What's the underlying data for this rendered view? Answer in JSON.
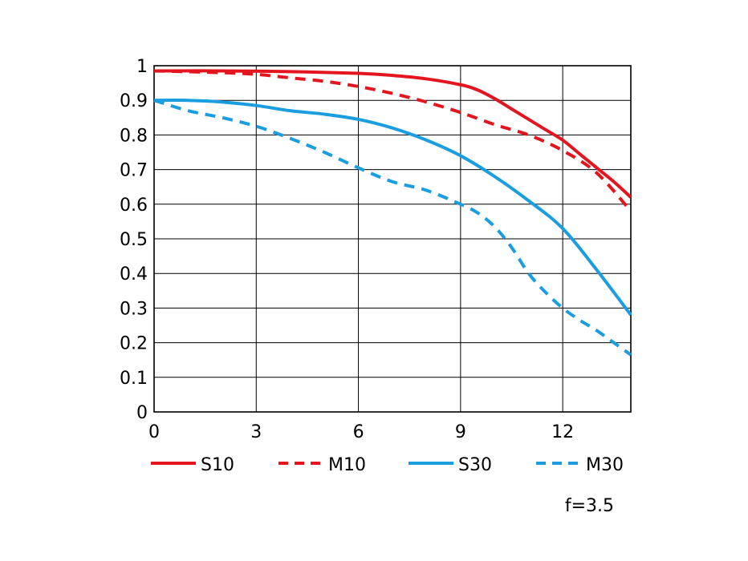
{
  "chart_data": {
    "type": "line",
    "xlim": [
      0,
      14
    ],
    "ylim": [
      0,
      1
    ],
    "x_ticks": [
      "0",
      "3",
      "6",
      "9",
      "12"
    ],
    "x_tick_values": [
      0,
      3,
      6,
      9,
      12
    ],
    "y_ticks": [
      "0",
      "0.1",
      "0.2",
      "0.3",
      "0.4",
      "0.5",
      "0.6",
      "0.7",
      "0.8",
      "0.9",
      "1"
    ],
    "y_tick_values": [
      0,
      0.1,
      0.2,
      0.3,
      0.4,
      0.5,
      0.6,
      0.7,
      0.8,
      0.9,
      1
    ],
    "grid": true,
    "legend_position": "bottom",
    "note": "f=3.5",
    "series": [
      {
        "name": "S10",
        "color": "#e3161f",
        "style": "solid",
        "x": [
          0,
          2,
          4,
          6,
          7,
          8,
          9,
          9.5,
          10,
          10.5,
          11,
          11.5,
          12,
          12.5,
          13,
          13.5,
          14
        ],
        "y": [
          0.985,
          0.985,
          0.983,
          0.978,
          0.972,
          0.962,
          0.945,
          0.93,
          0.905,
          0.875,
          0.845,
          0.815,
          0.785,
          0.745,
          0.705,
          0.665,
          0.62
        ]
      },
      {
        "name": "M10",
        "color": "#e3161f",
        "style": "dashed",
        "x": [
          0,
          2,
          3,
          4,
          5,
          6,
          7,
          8,
          9,
          10,
          11,
          12,
          13,
          14
        ],
        "y": [
          0.985,
          0.98,
          0.975,
          0.965,
          0.955,
          0.94,
          0.92,
          0.895,
          0.865,
          0.83,
          0.8,
          0.755,
          0.69,
          0.58
        ]
      },
      {
        "name": "S30",
        "color": "#1a9ee0",
        "style": "solid",
        "x": [
          0,
          1,
          2,
          3,
          4,
          5,
          6,
          7,
          8,
          9,
          10,
          11,
          12,
          13,
          14
        ],
        "y": [
          0.9,
          0.9,
          0.895,
          0.885,
          0.87,
          0.86,
          0.845,
          0.82,
          0.785,
          0.74,
          0.68,
          0.61,
          0.53,
          0.41,
          0.28
        ]
      },
      {
        "name": "M30",
        "color": "#1a9ee0",
        "style": "dashed",
        "x": [
          0,
          1,
          2,
          3,
          4,
          5,
          6,
          7,
          8,
          9,
          9.5,
          10,
          10.5,
          11,
          11.5,
          12,
          12.5,
          13,
          13.5,
          14
        ],
        "y": [
          0.9,
          0.87,
          0.85,
          0.825,
          0.79,
          0.75,
          0.705,
          0.665,
          0.64,
          0.6,
          0.575,
          0.535,
          0.475,
          0.4,
          0.345,
          0.3,
          0.265,
          0.235,
          0.2,
          0.165
        ]
      }
    ]
  }
}
